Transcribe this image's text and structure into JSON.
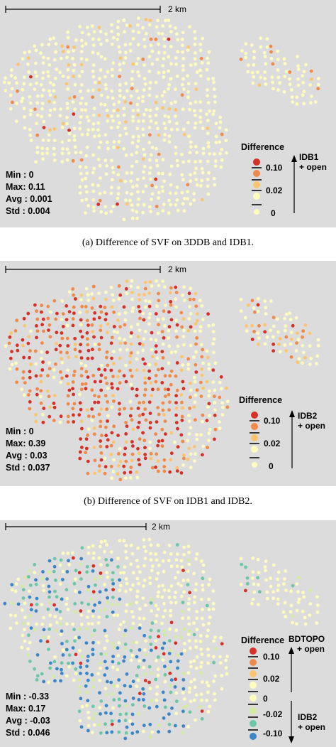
{
  "panels": [
    {
      "id": "a",
      "scale_label": "2 km",
      "stats": {
        "min": "Min : 0",
        "max": "Max: 0.11",
        "avg": "Avg : 0.001",
        "std": "Std : 0.004"
      },
      "legend": {
        "title": "Difference",
        "labels": [
          "0.10",
          "0.02",
          "0"
        ],
        "arrow_text": [
          "IDB1",
          "+ open"
        ],
        "colors": [
          "#d73027",
          "#f08a4b",
          "#fbc56f",
          "#fffcbf"
        ]
      },
      "caption": "(a) Difference of SVF on 3DDB and IDB1."
    },
    {
      "id": "b",
      "scale_label": "2 km",
      "stats": {
        "min": "Min : 0",
        "max": "Max: 0.39",
        "avg": "Avg : 0.03",
        "std": "Std : 0.037"
      },
      "legend": {
        "title": "Difference",
        "labels": [
          "0.10",
          "0.02",
          "0"
        ],
        "arrow_text": [
          "IDB2",
          "+ open"
        ],
        "colors": [
          "#d73027",
          "#f08a4b",
          "#fbc56f",
          "#fffcbf"
        ]
      },
      "caption": "(b) Difference of SVF on IDB1 and IDB2."
    },
    {
      "id": "c",
      "scale_label": "2 km",
      "stats": {
        "min": "Min : -0.33",
        "max": "Max: 0.17",
        "avg": "Avg : -0.03",
        "std": "Std : 0.046"
      },
      "legend": {
        "title": "Difference",
        "labels": [
          "0.10",
          "0.02",
          "0",
          "-0.02",
          "-0.10"
        ],
        "arrow_text_top": [
          "BDTOPO",
          "+ open"
        ],
        "arrow_text_bottom": [
          "IDB2",
          "+ open"
        ],
        "colors": [
          "#d73027",
          "#f08a4b",
          "#fbc56f",
          "#fffcbf",
          "#d2eba0",
          "#6cc7a6",
          "#3a86c8"
        ]
      }
    }
  ]
}
